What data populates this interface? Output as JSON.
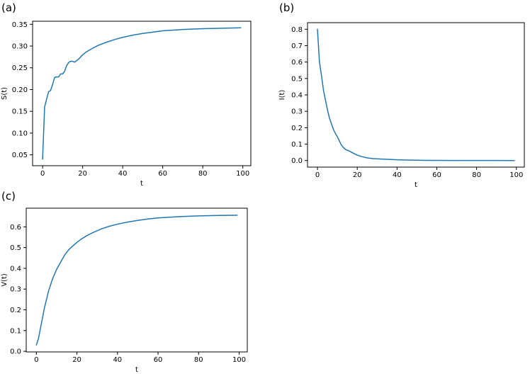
{
  "chart_data": [
    {
      "id": "a",
      "type": "line",
      "panel_label": "(a)",
      "title": "",
      "xlabel": "t",
      "ylabel": "S(t)",
      "xlim": [
        -5,
        104
      ],
      "ylim": [
        0.025,
        0.357
      ],
      "xticks": [
        0,
        20,
        40,
        60,
        80,
        100
      ],
      "xtick_labels": [
        "0",
        "20",
        "40",
        "60",
        "80",
        "100"
      ],
      "yticks": [
        0.05,
        0.1,
        0.15,
        0.2,
        0.25,
        0.3,
        0.35
      ],
      "ytick_labels": [
        "0.05",
        "0.10",
        "0.15",
        "0.20",
        "0.25",
        "0.30",
        "0.35"
      ],
      "grid": false,
      "color": "#1f77b4",
      "series": [
        {
          "x": [
            0,
            1,
            2,
            3,
            4,
            5,
            6,
            7,
            8,
            9,
            10,
            11,
            12,
            13,
            14,
            15,
            16,
            18,
            20,
            22,
            25,
            28,
            32,
            36,
            40,
            45,
            50,
            55,
            60,
            70,
            80,
            90,
            99
          ],
          "y": [
            0.04,
            0.16,
            0.178,
            0.195,
            0.198,
            0.212,
            0.228,
            0.229,
            0.229,
            0.236,
            0.236,
            0.242,
            0.255,
            0.262,
            0.265,
            0.265,
            0.263,
            0.27,
            0.28,
            0.287,
            0.295,
            0.302,
            0.309,
            0.315,
            0.32,
            0.325,
            0.329,
            0.332,
            0.335,
            0.338,
            0.34,
            0.341,
            0.342
          ]
        }
      ]
    },
    {
      "id": "b",
      "type": "line",
      "panel_label": "(b)",
      "title": "",
      "xlabel": "t",
      "ylabel": "I(t)",
      "xlim": [
        -5,
        104
      ],
      "ylim": [
        -0.04,
        0.84
      ],
      "xticks": [
        0,
        20,
        40,
        60,
        80,
        100
      ],
      "xtick_labels": [
        "0",
        "20",
        "40",
        "60",
        "80",
        "100"
      ],
      "yticks": [
        0.0,
        0.1,
        0.2,
        0.3,
        0.4,
        0.5,
        0.6,
        0.7,
        0.8
      ],
      "ytick_labels": [
        "0.0",
        "0.1",
        "0.2",
        "0.3",
        "0.4",
        "0.5",
        "0.6",
        "0.7",
        "0.8"
      ],
      "grid": false,
      "color": "#1f77b4",
      "series": [
        {
          "x": [
            0,
            1,
            2,
            3,
            4,
            5,
            6,
            7,
            8,
            9,
            10,
            11,
            12,
            13,
            14,
            15,
            16,
            18,
            20,
            22,
            25,
            28,
            32,
            36,
            40,
            45,
            50,
            55,
            60,
            70,
            80,
            90,
            99
          ],
          "y": [
            0.8,
            0.6,
            0.52,
            0.43,
            0.37,
            0.31,
            0.26,
            0.225,
            0.19,
            0.165,
            0.145,
            0.12,
            0.095,
            0.08,
            0.068,
            0.063,
            0.058,
            0.045,
            0.033,
            0.025,
            0.016,
            0.012,
            0.009,
            0.007,
            0.005,
            0.003,
            0.002,
            0.001,
            0.0008,
            0.0005,
            0.0003,
            0.0002,
            0.0001
          ]
        }
      ]
    },
    {
      "id": "c",
      "type": "line",
      "panel_label": "(c)",
      "title": "",
      "xlabel": "t",
      "ylabel": "V(t)",
      "xlim": [
        -5,
        104
      ],
      "ylim": [
        -0.003,
        0.69
      ],
      "xticks": [
        0,
        20,
        40,
        60,
        80,
        100
      ],
      "xtick_labels": [
        "0",
        "20",
        "40",
        "60",
        "80",
        "100"
      ],
      "yticks": [
        0.0,
        0.1,
        0.2,
        0.3,
        0.4,
        0.5,
        0.6
      ],
      "ytick_labels": [
        "0.0",
        "0.1",
        "0.2",
        "0.3",
        "0.4",
        "0.5",
        "0.6"
      ],
      "grid": false,
      "color": "#1f77b4",
      "series": [
        {
          "x": [
            0,
            1,
            2,
            3,
            4,
            6,
            8,
            10,
            12,
            14,
            16,
            18,
            20,
            22,
            25,
            28,
            32,
            36,
            40,
            45,
            50,
            55,
            60,
            70,
            80,
            90,
            99
          ],
          "y": [
            0.03,
            0.06,
            0.11,
            0.16,
            0.21,
            0.29,
            0.35,
            0.395,
            0.43,
            0.465,
            0.49,
            0.508,
            0.525,
            0.54,
            0.558,
            0.573,
            0.59,
            0.603,
            0.613,
            0.623,
            0.631,
            0.638,
            0.643,
            0.649,
            0.653,
            0.655,
            0.656
          ]
        }
      ]
    }
  ]
}
